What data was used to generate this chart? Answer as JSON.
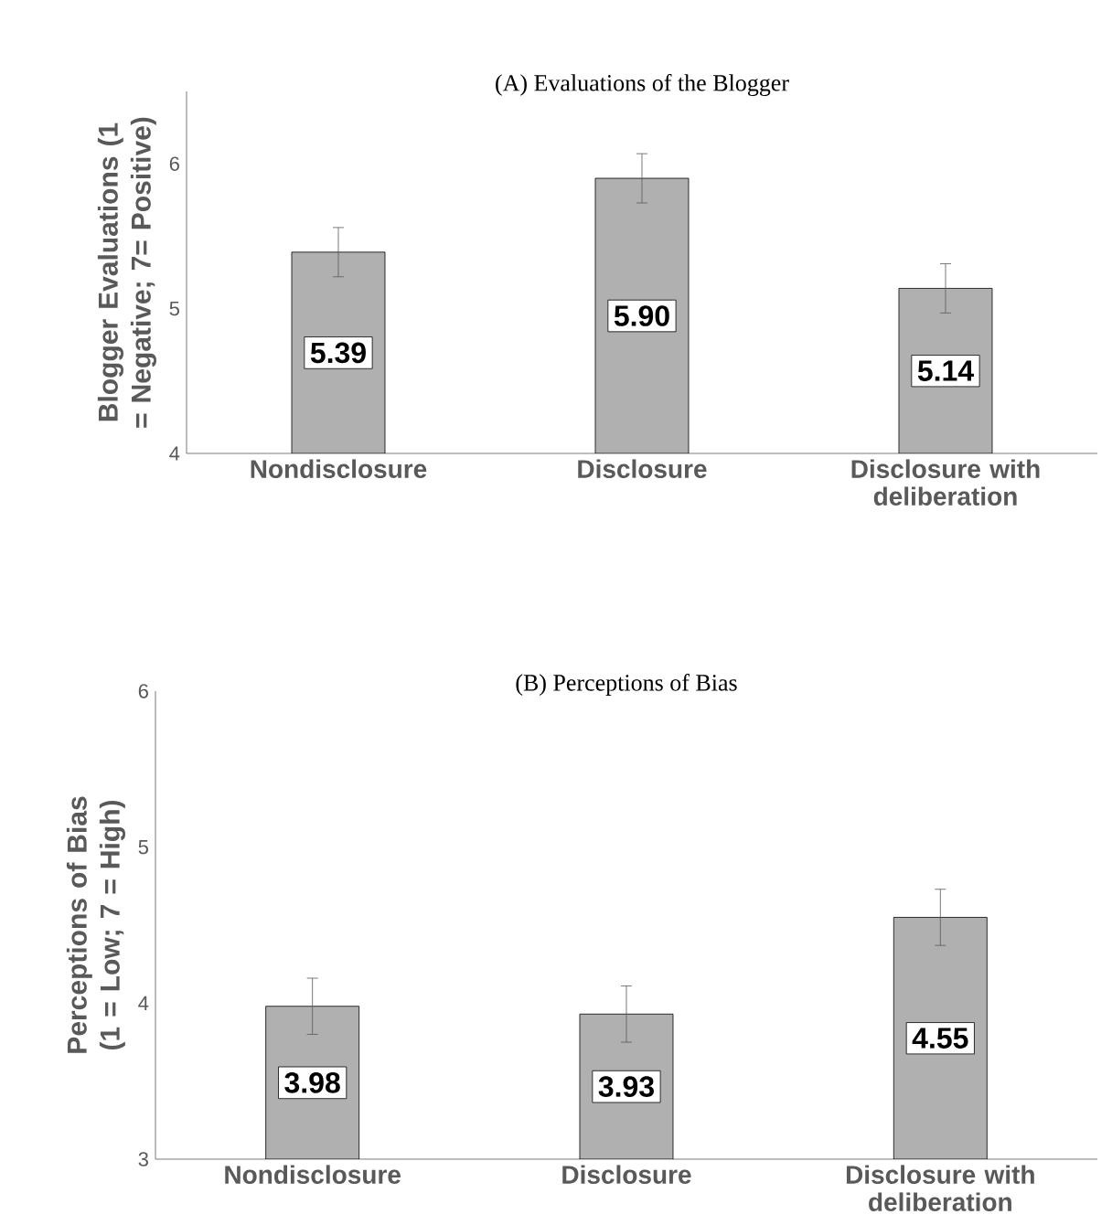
{
  "chart_data": [
    {
      "type": "bar",
      "title": "(A) Evaluations of the Blogger",
      "ylabel": "Blogger Evaluations (1 = Negative; 7= Positive)",
      "categories": [
        "Nondisclosure",
        "Disclosure",
        "Disclosure with deliberation"
      ],
      "values": [
        5.39,
        5.9,
        5.14
      ],
      "errors": [
        0.17,
        0.17,
        0.17
      ],
      "value_labels": [
        "5.39",
        "5.90",
        "5.14"
      ],
      "color": "#b0b0b0",
      "ylim": [
        4,
        6.5
      ],
      "yticks": [
        4,
        5,
        6
      ]
    },
    {
      "type": "bar",
      "title": "(B) Perceptions of Bias",
      "ylabel": "Perceptions of Bias (1 = Low; 7 = High)",
      "categories": [
        "Nondisclosure",
        "Disclosure",
        "Disclosure with deliberation"
      ],
      "values": [
        3.98,
        3.93,
        4.55
      ],
      "errors": [
        0.18,
        0.18,
        0.18
      ],
      "value_labels": [
        "3.98",
        "3.93",
        "4.55"
      ],
      "color": "#b0b0b0",
      "ylim": [
        3,
        6
      ],
      "yticks": [
        3,
        4,
        5,
        6
      ]
    }
  ]
}
